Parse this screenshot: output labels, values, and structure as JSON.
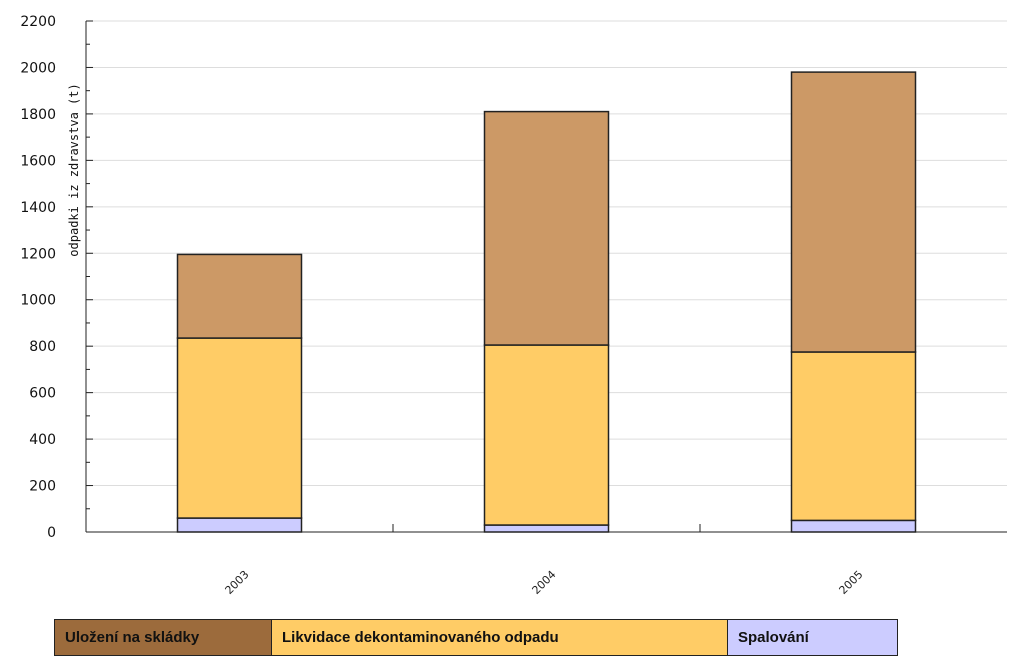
{
  "chart_data": {
    "type": "bar",
    "stacked": true,
    "categories": [
      "2003",
      "2004",
      "2005"
    ],
    "series": [
      {
        "name": "Spalování",
        "color": "#ccccff",
        "values": [
          60,
          30,
          50
        ]
      },
      {
        "name": "Likvidace dekontaminovaného odpadu",
        "color": "#ffcc66",
        "values": [
          775,
          775,
          725
        ]
      },
      {
        "name": "Uložení na skládky",
        "color": "#cc9966",
        "values": [
          360,
          1005,
          1205
        ]
      }
    ],
    "ylabel": "odpadki iz zdravstva (t)",
    "ylim": [
      0,
      2200
    ],
    "yticks": [
      0,
      200,
      400,
      600,
      800,
      1000,
      1200,
      1400,
      1600,
      1800,
      2000,
      2200
    ],
    "grid": true,
    "legend_position": "bottom"
  },
  "legend": {
    "items": [
      {
        "label": "Uložení na skládky",
        "color": "#9c6b3c"
      },
      {
        "label": "Likvidace dekontaminovaného odpadu",
        "color": "#ffcc66"
      },
      {
        "label": "Spalování",
        "color": "#ccccff"
      }
    ]
  }
}
